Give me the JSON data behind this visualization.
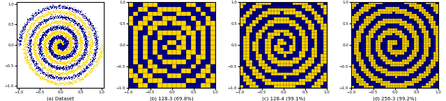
{
  "title_a": "(a) Dataset",
  "title_b": "(b) 128-3 (69.8%)",
  "title_c": "(c) 128-4 (99.1%)",
  "title_d": "(d) 256-3 (99.2%)",
  "figsize": [
    6.4,
    1.46
  ],
  "dpi": 100,
  "color_yellow": "#FFD700",
  "color_blue": "#00008B",
  "n_points": 10000,
  "n_turns": 4,
  "noise": 0.025,
  "block_b": 18,
  "block_c": 28,
  "block_d": 36,
  "ylim_a": [
    -1.05,
    1.05
  ],
  "xlim_a": [
    -1.05,
    1.05
  ],
  "xlim_bcd": [
    -1.0,
    1.0
  ],
  "ylim_bcd": [
    -1.0,
    1.0
  ]
}
